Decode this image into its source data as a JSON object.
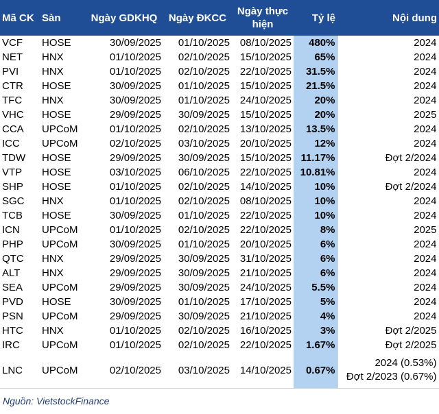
{
  "table": {
    "header": [
      "Mã CK",
      "Sàn",
      "Ngày GDKHQ",
      "Ngày ĐKCC",
      "Ngày thực hiện",
      "Tỷ lệ",
      "Nội dung"
    ],
    "rows": [
      [
        "VCF",
        "HOSE",
        "30/09/2025",
        "01/10/2025",
        "08/10/2025",
        "480%",
        "2024"
      ],
      [
        "NET",
        "HNX",
        "01/10/2025",
        "02/10/2025",
        "15/10/2025",
        "65%",
        "2024"
      ],
      [
        "PVI",
        "HNX",
        "01/10/2025",
        "02/10/2025",
        "22/10/2025",
        "31.5%",
        "2024"
      ],
      [
        "CTR",
        "HOSE",
        "30/09/2025",
        "01/10/2025",
        "15/10/2025",
        "21.5%",
        "2024"
      ],
      [
        "TFC",
        "HNX",
        "30/09/2025",
        "01/10/2025",
        "24/10/2025",
        "20%",
        "2024"
      ],
      [
        "VHC",
        "HOSE",
        "29/09/2025",
        "30/09/2025",
        "15/10/2025",
        "20%",
        "2025"
      ],
      [
        "CCA",
        "UPCoM",
        "01/10/2025",
        "02/10/2025",
        "13/10/2025",
        "13.5%",
        "2024"
      ],
      [
        "ICC",
        "UPCoM",
        "02/10/2025",
        "03/10/2025",
        "20/10/2025",
        "12%",
        "2024"
      ],
      [
        "TDW",
        "HOSE",
        "29/09/2025",
        "30/09/2025",
        "15/10/2025",
        "11.17%",
        "Đợt 2/2024"
      ],
      [
        "VTP",
        "HOSE",
        "03/10/2025",
        "06/10/2025",
        "22/10/2025",
        "10.81%",
        "2024"
      ],
      [
        "SHP",
        "HOSE",
        "01/10/2025",
        "02/10/2025",
        "14/10/2025",
        "10%",
        "Đợt 2/2024"
      ],
      [
        "SGC",
        "HNX",
        "01/10/2025",
        "02/10/2025",
        "08/10/2025",
        "10%",
        "2024"
      ],
      [
        "TCB",
        "HOSE",
        "30/09/2025",
        "01/10/2025",
        "22/10/2025",
        "10%",
        "2024"
      ],
      [
        "ICN",
        "UPCoM",
        "01/10/2025",
        "02/10/2025",
        "22/10/2025",
        "8%",
        "2025"
      ],
      [
        "PHP",
        "UPCoM",
        "30/09/2025",
        "01/10/2025",
        "20/10/2025",
        "6%",
        "2024"
      ],
      [
        "QTC",
        "HNX",
        "29/09/2025",
        "30/09/2025",
        "31/10/2025",
        "6%",
        "2024"
      ],
      [
        "ALT",
        "HNX",
        "29/09/2025",
        "30/09/2025",
        "21/10/2025",
        "6%",
        "2024"
      ],
      [
        "SEA",
        "UPCoM",
        "29/09/2025",
        "30/09/2025",
        "24/10/2025",
        "5.5%",
        "2024"
      ],
      [
        "PVD",
        "HOSE",
        "30/09/2025",
        "01/10/2025",
        "17/10/2025",
        "5%",
        "2024"
      ],
      [
        "PSN",
        "UPCoM",
        "29/09/2025",
        "30/09/2025",
        "21/10/2025",
        "4%",
        "2024"
      ],
      [
        "HTC",
        "HNX",
        "01/10/2025",
        "02/10/2025",
        "16/10/2025",
        "3%",
        "Đợt 2/2025"
      ],
      [
        "IRC",
        "UPCoM",
        "01/10/2025",
        "02/10/2025",
        "22/10/2025",
        "1.67%",
        "Đợt 2/2025"
      ],
      [
        "LNC",
        "UPCoM",
        "02/10/2025",
        "03/10/2025",
        "14/10/2025",
        "0.67%",
        [
          "2024 (0.53%)",
          "Đợt 2/2023 (0.67%)"
        ]
      ]
    ]
  },
  "source": "Nguồn: VietstockFinance"
}
